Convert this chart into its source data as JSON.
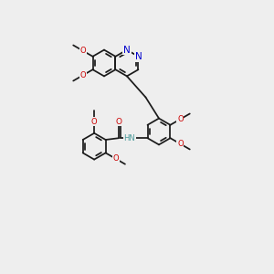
{
  "bg_color": "#eeeeee",
  "bond_color": "#1a1a1a",
  "n_color": "#0000cc",
  "o_color": "#cc0000",
  "h_color": "#4a9a9a",
  "figsize": [
    3.0,
    3.0
  ],
  "dpi": 100,
  "atoms": {
    "N": "#0000cc",
    "O": "#cc0000",
    "H": "#4a9a9a",
    "C": "#1a1a1a"
  }
}
